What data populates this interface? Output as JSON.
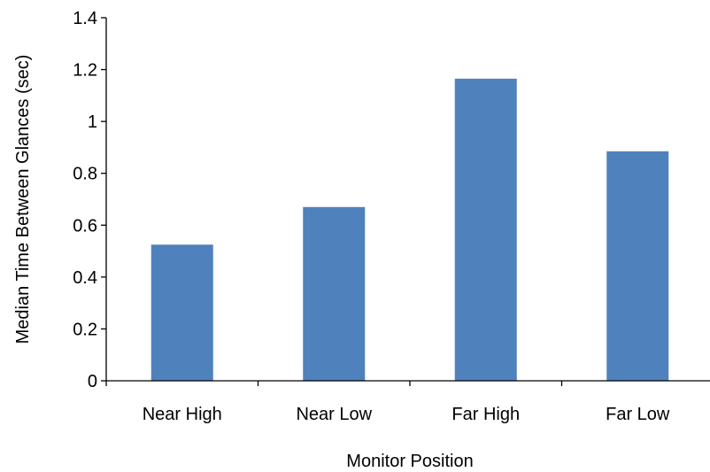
{
  "chart_data": {
    "type": "bar",
    "title": "",
    "xlabel": "Monitor Position",
    "ylabel": "Median Time Between Glances (sec)",
    "categories": [
      "Near High",
      "Near Low",
      "Far High",
      "Far Low"
    ],
    "values": [
      0.525,
      0.67,
      1.165,
      0.885
    ],
    "ylim": [
      0,
      1.4
    ],
    "ytick_values": [
      0,
      0.2,
      0.4,
      0.6,
      0.8,
      1,
      1.2,
      1.4
    ],
    "ytick_labels": [
      "0",
      "0.2",
      "0.4",
      "0.6",
      "0.8",
      "1",
      "1.2",
      "1.4"
    ],
    "grid": false,
    "legend": "none",
    "colors": {
      "bar": "#4f81bd"
    }
  }
}
